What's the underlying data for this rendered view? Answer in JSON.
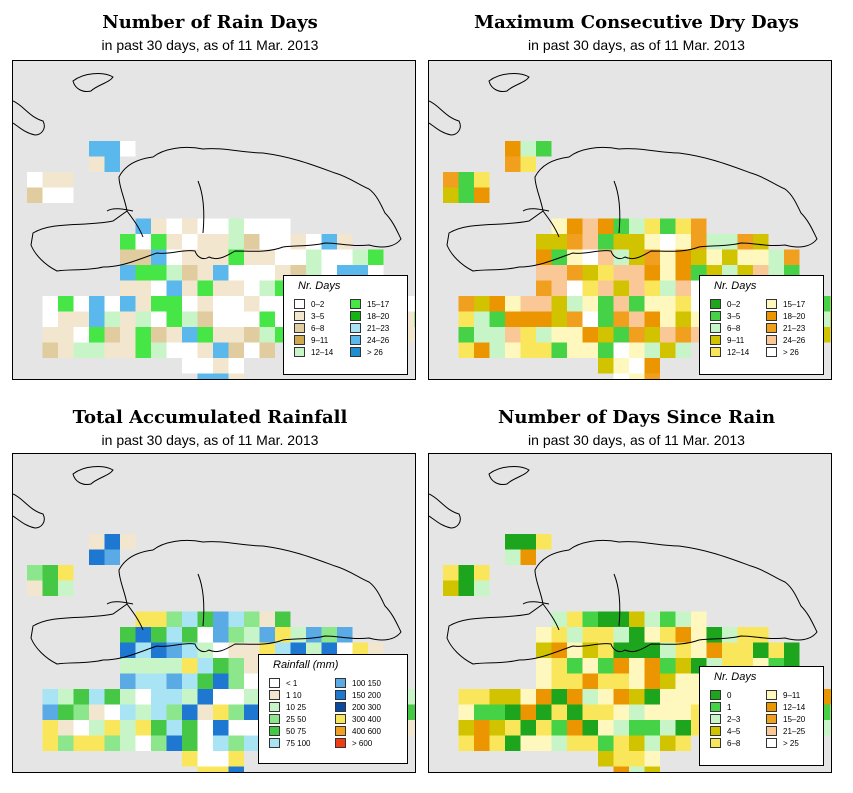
{
  "panels": [
    {
      "title": "Number of Rain Days",
      "subtitle": "in past 30 days, as of  11 Mar. 2013",
      "legend": {
        "title": "Nr. Days",
        "left": [
          {
            "label": "0–2",
            "color": "#ffffff"
          },
          {
            "label": "3–5",
            "color": "#f3e6cf"
          },
          {
            "label": "6–8",
            "color": "#e0cc9e"
          },
          {
            "label": "9–11",
            "color": "#cda84e"
          },
          {
            "label": "12–14",
            "color": "#c8f5c8"
          }
        ],
        "right": [
          {
            "label": "15–17",
            "color": "#46e646"
          },
          {
            "label": "18–20",
            "color": "#14b414"
          },
          {
            "label": "21–23",
            "color": "#a8e4f4"
          },
          {
            "label": "24–26",
            "color": "#5ab8ec"
          },
          {
            "label": "> 26",
            "color": "#1e90d2"
          }
        ]
      }
    },
    {
      "title": "Maximum Consecutive Dry Days",
      "subtitle": "in past 30 days, as of  11 Mar. 2013",
      "legend": {
        "title": "Nr. Days",
        "left": [
          {
            "label": "0–2",
            "color": "#1ea51e"
          },
          {
            "label": "3–5",
            "color": "#46d246"
          },
          {
            "label": "6–8",
            "color": "#c8f5c8"
          },
          {
            "label": "9–11",
            "color": "#d2c300"
          },
          {
            "label": "12–14",
            "color": "#fae65a"
          }
        ],
        "right": [
          {
            "label": "15–17",
            "color": "#fff8be"
          },
          {
            "label": "18–20",
            "color": "#eb9600"
          },
          {
            "label": "21–23",
            "color": "#f0a01e"
          },
          {
            "label": "24–26",
            "color": "#fac896"
          },
          {
            "label": "> 26",
            "color": "#ffffff"
          }
        ]
      }
    },
    {
      "title": "Total Accumulated Rainfall",
      "subtitle": "in past 30 days, as of  11 Mar. 2013",
      "legend": {
        "title": "Rainfall (mm)",
        "left": [
          {
            "label": "< 1",
            "color": "#ffffff"
          },
          {
            "label": "1     10",
            "color": "#f3e6cf"
          },
          {
            "label": "10     25",
            "color": "#c8f5c8"
          },
          {
            "label": "25     50",
            "color": "#8ce68c"
          },
          {
            "label": "50     75",
            "color": "#46c846"
          },
          {
            "label": "75   100",
            "color": "#a8e4f4"
          }
        ],
        "right": [
          {
            "label": "100   150",
            "color": "#5aaae6"
          },
          {
            "label": "150   200",
            "color": "#1e78d2"
          },
          {
            "label": "200   300",
            "color": "#0a4ba0"
          },
          {
            "label": "300   400",
            "color": "#fae65a"
          },
          {
            "label": "400   600",
            "color": "#f0a01e"
          },
          {
            "label": "> 600",
            "color": "#f03c14"
          }
        ]
      }
    },
    {
      "title": "Number of Days Since Rain",
      "subtitle": "in past 30 days, as of  11 Mar. 2013",
      "legend": {
        "title": "Nr. Days",
        "left": [
          {
            "label": "0",
            "color": "#1ea51e"
          },
          {
            "label": "1",
            "color": "#46d246"
          },
          {
            "label": "2–3",
            "color": "#c8f5c8"
          },
          {
            "label": "4–5",
            "color": "#d2c300"
          },
          {
            "label": "6–8",
            "color": "#fae65a"
          }
        ],
        "right": [
          {
            "label": "9–11",
            "color": "#fff8be"
          },
          {
            "label": "12–14",
            "color": "#eb9600"
          },
          {
            "label": "15–20",
            "color": "#f0a01e"
          },
          {
            "label": "21–25",
            "color": "#fac896"
          },
          {
            "label": "> 25",
            "color": "#ffffff"
          }
        ]
      }
    }
  ]
}
